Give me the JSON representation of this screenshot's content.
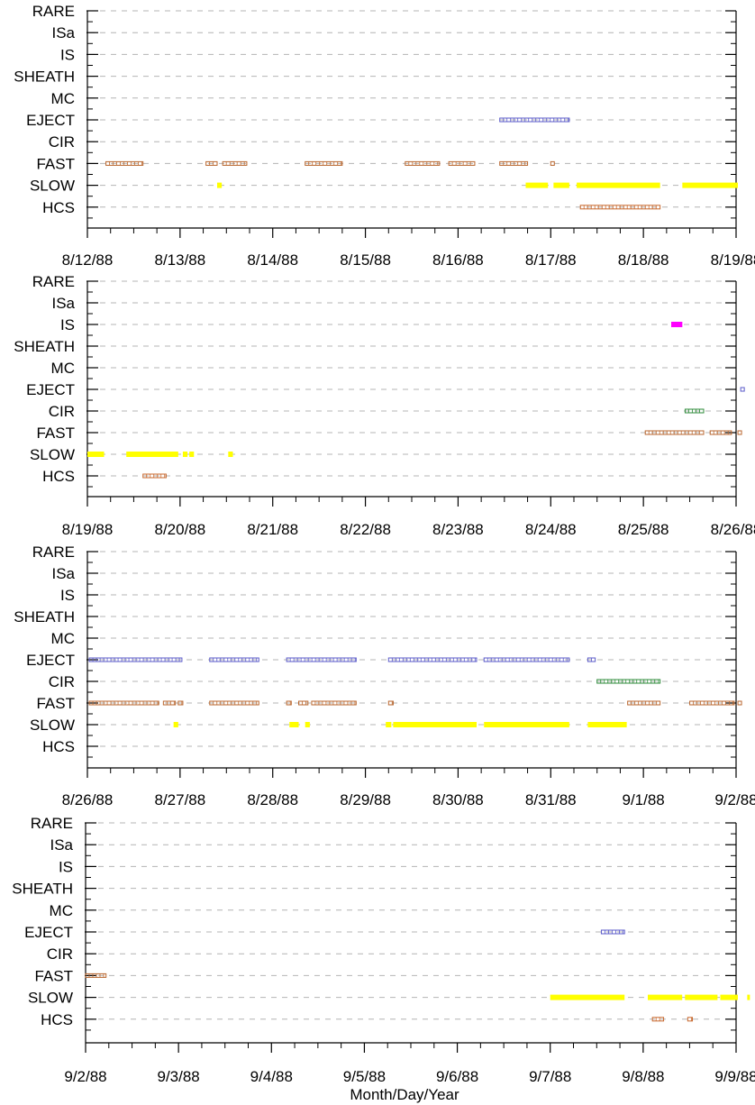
{
  "chart_data": {
    "type": "scatter",
    "xlabel": "Month/Day/Year",
    "categories": [
      "RARE",
      "ISa",
      "IS",
      "SHEATH",
      "MC",
      "EJECT",
      "CIR",
      "FAST",
      "SLOW",
      "HCS"
    ],
    "grid": "dashed horizontal lines at each category",
    "colors": {
      "EJECT": "#5a5ac8",
      "CIR": "#2e8b3a",
      "FAST": "#b8662e",
      "SLOW": "#ffff00",
      "HCS": "#c8682e",
      "IS": "#ff00ff"
    },
    "panels": [
      {
        "dates": [
          "8/12/88",
          "8/13/88",
          "8/14/88",
          "8/15/88",
          "8/16/88",
          "8/17/88",
          "8/18/88",
          "8/19/88"
        ],
        "xlim": [
          0,
          7
        ],
        "intervals": [
          {
            "cat": "EJECT",
            "start": 4.45,
            "end": 5.2,
            "style": "box"
          },
          {
            "cat": "FAST",
            "start": 0.2,
            "end": 0.6,
            "style": "box"
          },
          {
            "cat": "FAST",
            "start": 1.28,
            "end": 1.4,
            "style": "box"
          },
          {
            "cat": "FAST",
            "start": 1.46,
            "end": 1.72,
            "style": "box"
          },
          {
            "cat": "FAST",
            "start": 2.35,
            "end": 2.75,
            "style": "box"
          },
          {
            "cat": "FAST",
            "start": 3.43,
            "end": 3.8,
            "style": "box"
          },
          {
            "cat": "FAST",
            "start": 3.9,
            "end": 4.18,
            "style": "box"
          },
          {
            "cat": "FAST",
            "start": 4.45,
            "end": 4.75,
            "style": "box"
          },
          {
            "cat": "FAST",
            "start": 5.0,
            "end": 5.03,
            "style": "box"
          },
          {
            "cat": "SLOW",
            "start": 1.4,
            "end": 1.45,
            "style": "bar"
          },
          {
            "cat": "SLOW",
            "start": 4.73,
            "end": 4.97,
            "style": "bar"
          },
          {
            "cat": "SLOW",
            "start": 5.03,
            "end": 5.2,
            "style": "bar"
          },
          {
            "cat": "SLOW",
            "start": 5.28,
            "end": 6.18,
            "style": "bar"
          },
          {
            "cat": "SLOW",
            "start": 6.42,
            "end": 7.15,
            "style": "bar"
          },
          {
            "cat": "HCS",
            "start": 5.32,
            "end": 6.18,
            "style": "box"
          }
        ]
      },
      {
        "dates": [
          "8/19/88",
          "8/20/88",
          "8/21/88",
          "8/22/88",
          "8/23/88",
          "8/24/88",
          "8/25/88",
          "8/26/88"
        ],
        "xlim": [
          0,
          7
        ],
        "intervals": [
          {
            "cat": "IS",
            "start": 6.3,
            "end": 6.42,
            "style": "bar"
          },
          {
            "cat": "EJECT",
            "start": 7.05,
            "end": 7.15,
            "style": "box"
          },
          {
            "cat": "CIR",
            "start": 6.45,
            "end": 6.65,
            "style": "box"
          },
          {
            "cat": "FAST",
            "start": 6.02,
            "end": 6.65,
            "style": "box"
          },
          {
            "cat": "FAST",
            "start": 6.72,
            "end": 6.95,
            "style": "box"
          },
          {
            "cat": "FAST",
            "start": 7.02,
            "end": 7.15,
            "style": "box"
          },
          {
            "cat": "SLOW",
            "start": 0.0,
            "end": 0.18,
            "style": "bar"
          },
          {
            "cat": "SLOW",
            "start": 0.42,
            "end": 0.98,
            "style": "bar"
          },
          {
            "cat": "SLOW",
            "start": 1.03,
            "end": 1.08,
            "style": "bar"
          },
          {
            "cat": "SLOW",
            "start": 1.1,
            "end": 1.15,
            "style": "bar"
          },
          {
            "cat": "SLOW",
            "start": 1.52,
            "end": 1.57,
            "style": "bar"
          },
          {
            "cat": "HCS",
            "start": 0.6,
            "end": 0.85,
            "style": "box"
          }
        ]
      },
      {
        "dates": [
          "8/26/88",
          "8/27/88",
          "8/28/88",
          "8/29/88",
          "8/30/88",
          "8/31/88",
          "9/1/88",
          "9/2/88"
        ],
        "xlim": [
          0,
          7
        ],
        "intervals": [
          {
            "cat": "EJECT",
            "start": 0.02,
            "end": 1.02,
            "style": "box"
          },
          {
            "cat": "EJECT",
            "start": 1.32,
            "end": 1.85,
            "style": "box"
          },
          {
            "cat": "EJECT",
            "start": 2.15,
            "end": 2.9,
            "style": "box"
          },
          {
            "cat": "EJECT",
            "start": 3.25,
            "end": 4.2,
            "style": "box"
          },
          {
            "cat": "EJECT",
            "start": 4.28,
            "end": 5.2,
            "style": "box"
          },
          {
            "cat": "EJECT",
            "start": 5.4,
            "end": 5.48,
            "style": "box"
          },
          {
            "cat": "CIR",
            "start": 5.5,
            "end": 6.18,
            "style": "box"
          },
          {
            "cat": "FAST",
            "start": 0.02,
            "end": 0.77,
            "style": "box"
          },
          {
            "cat": "FAST",
            "start": 0.82,
            "end": 0.95,
            "style": "box"
          },
          {
            "cat": "FAST",
            "start": 0.98,
            "end": 1.03,
            "style": "box"
          },
          {
            "cat": "FAST",
            "start": 1.32,
            "end": 1.85,
            "style": "box"
          },
          {
            "cat": "FAST",
            "start": 2.15,
            "end": 2.2,
            "style": "box"
          },
          {
            "cat": "FAST",
            "start": 2.28,
            "end": 2.38,
            "style": "box"
          },
          {
            "cat": "FAST",
            "start": 2.42,
            "end": 2.9,
            "style": "box"
          },
          {
            "cat": "FAST",
            "start": 3.25,
            "end": 3.3,
            "style": "box"
          },
          {
            "cat": "FAST",
            "start": 5.83,
            "end": 6.18,
            "style": "box"
          },
          {
            "cat": "FAST",
            "start": 6.5,
            "end": 6.98,
            "style": "box"
          },
          {
            "cat": "FAST",
            "start": 7.02,
            "end": 7.15,
            "style": "box"
          },
          {
            "cat": "SLOW",
            "start": 0.93,
            "end": 0.98,
            "style": "bar"
          },
          {
            "cat": "SLOW",
            "start": 2.18,
            "end": 2.28,
            "style": "bar"
          },
          {
            "cat": "SLOW",
            "start": 2.35,
            "end": 2.4,
            "style": "bar"
          },
          {
            "cat": "SLOW",
            "start": 3.22,
            "end": 3.28,
            "style": "bar"
          },
          {
            "cat": "SLOW",
            "start": 3.3,
            "end": 4.2,
            "style": "bar"
          },
          {
            "cat": "SLOW",
            "start": 4.28,
            "end": 5.2,
            "style": "bar"
          },
          {
            "cat": "SLOW",
            "start": 5.4,
            "end": 5.82,
            "style": "bar"
          }
        ]
      },
      {
        "dates": [
          "9/2/88",
          "9/3/88",
          "9/4/88",
          "9/5/88",
          "9/6/88",
          "9/7/88",
          "9/8/88",
          "9/9/88"
        ],
        "xlim": [
          0,
          7
        ],
        "intervals": [
          {
            "cat": "EJECT",
            "start": 5.55,
            "end": 5.8,
            "style": "box"
          },
          {
            "cat": "FAST",
            "start": 0.0,
            "end": 0.22,
            "style": "box"
          },
          {
            "cat": "SLOW",
            "start": 5.0,
            "end": 5.8,
            "style": "bar"
          },
          {
            "cat": "SLOW",
            "start": 6.05,
            "end": 6.42,
            "style": "bar"
          },
          {
            "cat": "SLOW",
            "start": 6.45,
            "end": 6.8,
            "style": "bar"
          },
          {
            "cat": "SLOW",
            "start": 6.83,
            "end": 7.05,
            "style": "bar"
          },
          {
            "cat": "SLOW",
            "start": 7.12,
            "end": 7.17,
            "style": "bar"
          },
          {
            "cat": "HCS",
            "start": 6.1,
            "end": 6.22,
            "style": "box"
          },
          {
            "cat": "HCS",
            "start": 6.48,
            "end": 6.53,
            "style": "box"
          }
        ]
      }
    ]
  }
}
